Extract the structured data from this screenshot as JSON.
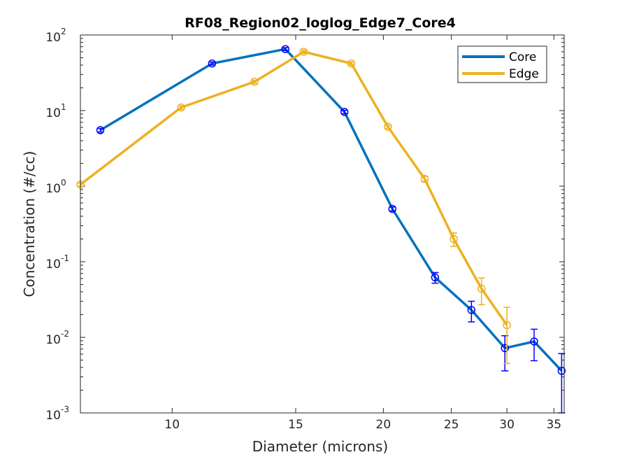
{
  "chart_data": {
    "type": "line",
    "title": "RF08_Region02_loglog_Edge7_Core4",
    "xlabel": "Diameter (microns)",
    "ylabel": "Concentration (#/cc)",
    "xscale": "log",
    "yscale": "log",
    "xlim": [
      7.4,
      36.2
    ],
    "ylim": [
      0.001,
      100
    ],
    "xticks": [
      10,
      15,
      20,
      25,
      30,
      35
    ],
    "xtick_labels": [
      "10",
      "15",
      "20",
      "25",
      "30",
      "35"
    ],
    "yticks": [
      0.001,
      0.01,
      0.1,
      1,
      10,
      100
    ],
    "ytick_labels": [
      {
        "base": "10",
        "exp": "-3"
      },
      {
        "base": "10",
        "exp": "-2"
      },
      {
        "base": "10",
        "exp": "-1"
      },
      {
        "base": "10",
        "exp": "0"
      },
      {
        "base": "10",
        "exp": "1"
      },
      {
        "base": "10",
        "exp": "2"
      }
    ],
    "grid": false,
    "legend_position": "top-right",
    "series": [
      {
        "name": "Core",
        "color": "#0072BD",
        "marker_color": "#0000FF",
        "x": [
          7.9,
          11.4,
          14.5,
          17.6,
          20.6,
          23.7,
          26.7,
          29.8,
          32.8,
          35.9
        ],
        "y": [
          5.5,
          42,
          65,
          9.6,
          0.5,
          0.062,
          0.023,
          0.0072,
          0.0088,
          0.0036
        ],
        "err_low": [
          5.2,
          40,
          62,
          9.1,
          0.47,
          0.052,
          0.016,
          0.0036,
          0.0049,
          0.001
        ],
        "err_high": [
          5.8,
          44,
          68,
          10.1,
          0.53,
          0.072,
          0.03,
          0.0105,
          0.0128,
          0.0061
        ]
      },
      {
        "name": "Edge",
        "color": "#EDB120",
        "marker_color": "#EDB120",
        "x": [
          7.4,
          10.3,
          13.1,
          15.4,
          18.0,
          20.3,
          22.9,
          25.2,
          27.6,
          30.0
        ],
        "y": [
          1.05,
          11,
          24,
          60,
          42,
          6.1,
          1.25,
          0.2,
          0.044,
          0.0145
        ],
        "err_low": [
          1.0,
          10.4,
          22.8,
          57,
          40,
          5.8,
          1.15,
          0.16,
          0.027,
          0.0045
        ],
        "err_high": [
          1.1,
          11.6,
          25.2,
          63,
          44,
          6.4,
          1.35,
          0.24,
          0.061,
          0.025
        ]
      }
    ]
  }
}
